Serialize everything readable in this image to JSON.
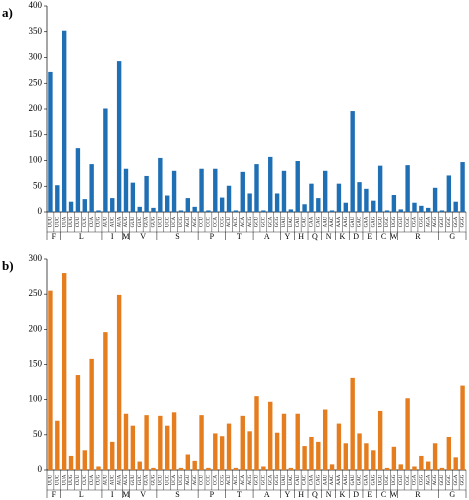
{
  "chart_data": [
    {
      "type": "bar",
      "label": "a)",
      "color": "#1f6fb5",
      "ylim": [
        0,
        400
      ],
      "yticks": [
        0,
        50,
        100,
        150,
        200,
        250,
        300,
        350,
        400
      ],
      "groups": [
        {
          "label": "F",
          "codons": [
            "UUU",
            "UUC"
          ]
        },
        {
          "label": "L",
          "codons": [
            "UUA",
            "UUG",
            "CUU",
            "CUC",
            "CUA",
            "CUG"
          ]
        },
        {
          "label": "I",
          "codons": [
            "AUU",
            "AUC",
            "AUA"
          ]
        },
        {
          "label": "M",
          "codons": [
            "AUG"
          ]
        },
        {
          "label": "V",
          "codons": [
            "GUU",
            "GUC",
            "GUA",
            "GUG"
          ]
        },
        {
          "label": "S",
          "codons": [
            "UCU",
            "UCC",
            "UCA",
            "UCG",
            "AGU",
            "AGC"
          ]
        },
        {
          "label": "P",
          "codons": [
            "CCU",
            "CCC",
            "CCA",
            "CCG"
          ]
        },
        {
          "label": "T",
          "codons": [
            "ACU",
            "ACC",
            "ACA",
            "ACG"
          ]
        },
        {
          "label": "A",
          "codons": [
            "GCU",
            "GCC",
            "GCA",
            "GCG"
          ]
        },
        {
          "label": "Y",
          "codons": [
            "UAU",
            "UAC"
          ]
        },
        {
          "label": "H",
          "codons": [
            "CAU",
            "CAC"
          ]
        },
        {
          "label": "Q",
          "codons": [
            "CAA",
            "CAG"
          ]
        },
        {
          "label": "N",
          "codons": [
            "AAU",
            "AAC"
          ]
        },
        {
          "label": "K",
          "codons": [
            "AAA",
            "AAG"
          ]
        },
        {
          "label": "D",
          "codons": [
            "GAU",
            "GAC"
          ]
        },
        {
          "label": "E",
          "codons": [
            "GAA",
            "GAG"
          ]
        },
        {
          "label": "C",
          "codons": [
            "UGU",
            "UGC"
          ]
        },
        {
          "label": "W",
          "codons": [
            "UGG"
          ]
        },
        {
          "label": "R",
          "codons": [
            "CGU",
            "CGC",
            "CGA",
            "CGG",
            "AGA",
            "AGG"
          ]
        },
        {
          "label": "G",
          "codons": [
            "GGU",
            "GGC",
            "GGA",
            "GGG"
          ]
        }
      ],
      "values": [
        272,
        52,
        352,
        20,
        124,
        25,
        93,
        3,
        201,
        27,
        293,
        84,
        57,
        10,
        70,
        8,
        105,
        32,
        80,
        3,
        27,
        10,
        84,
        3,
        84,
        28,
        51,
        3,
        78,
        36,
        93,
        3,
        107,
        36,
        80,
        5,
        99,
        15,
        55,
        27,
        80,
        3,
        55,
        18,
        196,
        58,
        45,
        22,
        90,
        3,
        33,
        5,
        91,
        18,
        12,
        8,
        47,
        3,
        71,
        20,
        97
      ]
    },
    {
      "type": "bar",
      "label": "b)",
      "color": "#e57c1e",
      "ylim": [
        0,
        300
      ],
      "yticks": [
        0,
        50,
        100,
        150,
        200,
        250,
        300
      ],
      "groups": [
        {
          "label": "F",
          "codons": [
            "UUU",
            "UUC"
          ]
        },
        {
          "label": "L",
          "codons": [
            "UUA",
            "UUG",
            "CUU",
            "CUC",
            "CUA",
            "CUG"
          ]
        },
        {
          "label": "I",
          "codons": [
            "AUU",
            "AUC",
            "AUA"
          ]
        },
        {
          "label": "M",
          "codons": [
            "AUG"
          ]
        },
        {
          "label": "V",
          "codons": [
            "GUU",
            "GUC",
            "GUA",
            "GUG"
          ]
        },
        {
          "label": "S",
          "codons": [
            "UCU",
            "UCC",
            "UCA",
            "UCG",
            "AGU",
            "AGC"
          ]
        },
        {
          "label": "P",
          "codons": [
            "CCU",
            "CCC",
            "CCA",
            "CCG"
          ]
        },
        {
          "label": "T",
          "codons": [
            "ACU",
            "ACC",
            "ACA",
            "ACG"
          ]
        },
        {
          "label": "A",
          "codons": [
            "GCU",
            "GCC",
            "GCA",
            "GCG"
          ]
        },
        {
          "label": "Y",
          "codons": [
            "UAU",
            "UAC"
          ]
        },
        {
          "label": "H",
          "codons": [
            "CAU",
            "CAC"
          ]
        },
        {
          "label": "Q",
          "codons": [
            "CAA",
            "CAG"
          ]
        },
        {
          "label": "N",
          "codons": [
            "AAU",
            "AAC"
          ]
        },
        {
          "label": "K",
          "codons": [
            "AAA",
            "AAG"
          ]
        },
        {
          "label": "D",
          "codons": [
            "GAU",
            "GAC"
          ]
        },
        {
          "label": "E",
          "codons": [
            "GAA",
            "GAG"
          ]
        },
        {
          "label": "C",
          "codons": [
            "UGU",
            "UGC"
          ]
        },
        {
          "label": "W",
          "codons": [
            "UGG"
          ]
        },
        {
          "label": "R",
          "codons": [
            "CGU",
            "CGC",
            "CGA",
            "CGG",
            "AGA",
            "AGG"
          ]
        },
        {
          "label": "G",
          "codons": [
            "GGU",
            "GGC",
            "GGA",
            "GGG"
          ]
        }
      ],
      "values": [
        255,
        70,
        280,
        20,
        135,
        28,
        158,
        5,
        196,
        40,
        249,
        80,
        63,
        12,
        78,
        3,
        77,
        63,
        82,
        3,
        22,
        13,
        78,
        3,
        52,
        48,
        66,
        3,
        77,
        55,
        105,
        5,
        97,
        53,
        80,
        3,
        80,
        34,
        47,
        40,
        86,
        8,
        66,
        38,
        131,
        52,
        38,
        28,
        84,
        3,
        33,
        8,
        102,
        5,
        20,
        12,
        38,
        3,
        47,
        18,
        120
      ]
    }
  ]
}
